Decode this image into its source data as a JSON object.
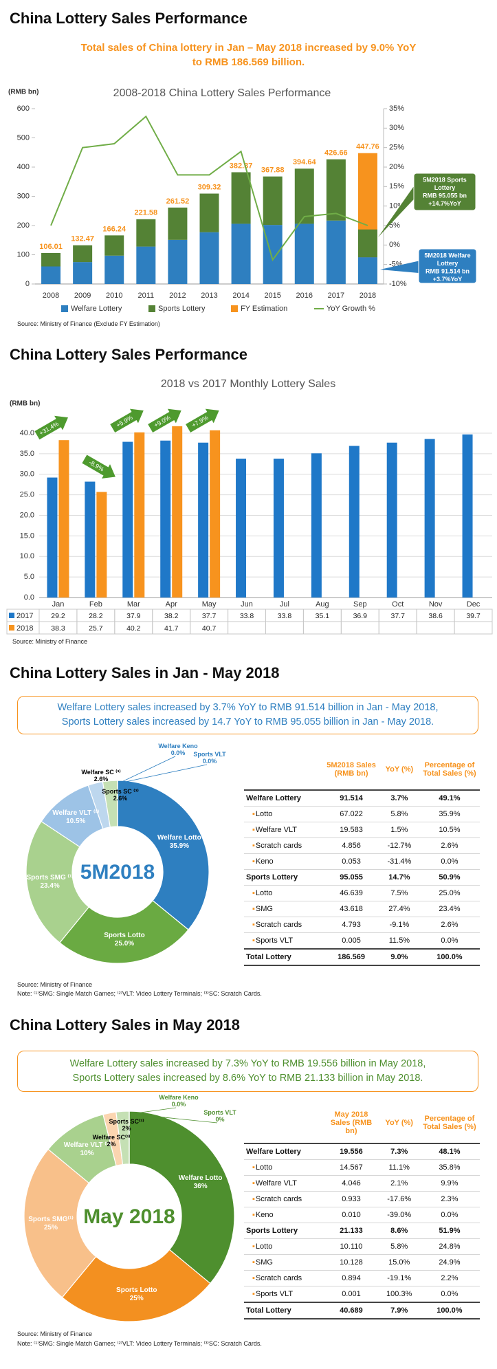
{
  "sections": [
    {
      "heading": "China Lottery Sales Performance",
      "subtitle": [
        "Total sales of China lottery in Jan – May 2018 increased by 9.0% YoY",
        "to RMB 186.569 billion."
      ],
      "source": "Source: Ministry of Finance (Exclude FY Estimation)"
    },
    {
      "heading": "China Lottery Sales Performance",
      "source": "Source: Ministry of Finance"
    },
    {
      "heading": "China Lottery Sales in Jan - May 2018",
      "summary": [
        "Welfare Lottery sales increased by 3.7% YoY to RMB 91.514 billion in Jan - May 2018,",
        "Sports Lottery sales increased by 14.7 YoY to RMB 95.055 billion in Jan - May 2018."
      ],
      "source": "Source: Ministry of Finance",
      "note": "Note: ⁽¹⁾SMG: Single Match Games; ⁽²⁾VLT: Video Lottery Terminals; ⁽³⁾SC: Scratch Cards."
    },
    {
      "heading": "China Lottery Sales in May 2018",
      "summary": [
        "Welfare Lottery sales increased by 7.3% YoY to RMB 19.556 billion in May 2018,",
        "Sports Lottery sales increased by 8.6% YoY to RMB 21.133 billion in May 2018."
      ],
      "source": "Source: Ministry of Finance",
      "note": "Note: ⁽¹⁾SMG: Single Match Games; ⁽²⁾VLT: Video Lottery Terminals; ⁽³⁾SC: Scratch Cards."
    }
  ],
  "chart_data": [
    {
      "type": "combo",
      "title": "2008-2018 China Lottery Sales Performance",
      "ylabel": "(RMB bn)",
      "categories": [
        "2008",
        "2009",
        "2010",
        "2011",
        "2012",
        "2013",
        "2014",
        "2015",
        "2016",
        "2017",
        "2018"
      ],
      "series": [
        {
          "name": "Welfare Lottery",
          "color": "#2e7fc0",
          "kind": "bar",
          "stack": "sales",
          "values": [
            60,
            75,
            97,
            128,
            151,
            177,
            206,
            202,
            206,
            217,
            91.514
          ]
        },
        {
          "name": "Sports Lottery",
          "color": "#548235",
          "kind": "bar",
          "stack": "sales",
          "values": [
            46.01,
            57.47,
            69.24,
            93.58,
            110.52,
            132.32,
            176.37,
            165.88,
            188.64,
            209.66,
            95.055
          ]
        },
        {
          "name": "FY Estimation",
          "color": "#f7931e",
          "kind": "bar",
          "values": [
            null,
            null,
            null,
            null,
            null,
            null,
            null,
            null,
            null,
            null,
            447.76
          ]
        },
        {
          "name": "YoY Growth %",
          "color": "#70ad47",
          "kind": "line",
          "axis": "y2",
          "values": [
            5,
            25,
            26,
            33,
            18,
            18,
            24,
            -3.8,
            7.3,
            8.1,
            5
          ]
        }
      ],
      "totals": [
        106.01,
        132.47,
        166.24,
        221.58,
        261.52,
        309.32,
        382.37,
        367.88,
        394.64,
        426.66,
        447.76
      ],
      "ylim": [
        0,
        600
      ],
      "yticks": [
        0,
        100,
        200,
        300,
        400,
        500,
        600
      ],
      "y2lim": [
        -10,
        35
      ],
      "y2ticks": [
        {
          "value": -10,
          "label": "-10%"
        },
        {
          "value": -5,
          "label": "-5%"
        },
        {
          "value": 0,
          "label": "0%"
        },
        {
          "value": 5,
          "label": "5%"
        },
        {
          "value": 10,
          "label": "10%"
        },
        {
          "value": 15,
          "label": "15%"
        },
        {
          "value": 20,
          "label": "20%"
        },
        {
          "value": 25,
          "label": "25%"
        },
        {
          "value": 30,
          "label": "30%"
        },
        {
          "value": 35,
          "label": "35%"
        }
      ],
      "grid": false,
      "annotations": [
        {
          "color": "#548235",
          "lines": [
            "5M2018  Sports",
            "Lottery",
            "RMB 95.055 bn",
            "+14.7%YoY"
          ]
        },
        {
          "color": "#2e7fc0",
          "lines": [
            "5M2018 Welfare",
            "Lottery",
            "RMB 91.514 bn",
            "+3.7%YoY"
          ]
        }
      ]
    },
    {
      "type": "grouped_bar",
      "title": "2018 vs 2017 Monthly Lottery Sales",
      "ylabel": "(RMB bn)",
      "categories": [
        "Jan",
        "Feb",
        "Mar",
        "Apr",
        "May",
        "Jun",
        "Jul",
        "Aug",
        "Sep",
        "Oct",
        "Nov",
        "Dec"
      ],
      "series": [
        {
          "name": "2017",
          "color": "#1f78c8",
          "values": [
            29.2,
            28.2,
            37.9,
            38.2,
            37.7,
            33.8,
            33.8,
            35.1,
            36.9,
            37.7,
            38.6,
            39.7
          ]
        },
        {
          "name": "2018",
          "color": "#f7931e",
          "values": [
            38.3,
            25.7,
            40.2,
            41.7,
            40.7,
            null,
            null,
            null,
            null,
            null,
            null,
            null
          ]
        }
      ],
      "ylim": [
        0,
        42
      ],
      "yticks": [
        {
          "value": 0,
          "label": "0.0"
        },
        {
          "value": 5,
          "label": "5.0"
        },
        {
          "value": 10,
          "label": "10.0"
        },
        {
          "value": 15,
          "label": "15.0"
        },
        {
          "value": 20,
          "label": "20.0"
        },
        {
          "value": 25,
          "label": "25.0"
        },
        {
          "value": 30,
          "label": "30.0"
        },
        {
          "value": 35,
          "label": "35.0"
        },
        {
          "value": 40,
          "label": "40.0"
        }
      ],
      "grid": true,
      "annotations": [
        "+31.4%",
        "-8.9%",
        "+5.9%",
        "+9.0%",
        "+7.9%"
      ],
      "annotation_color": "#4e9a2e"
    },
    {
      "type": "donut",
      "center_label": "5M2018",
      "center_color": "#2e7fc0",
      "label_color": "#2e7fc0",
      "labels": [
        "Welfare Lotto",
        "Sports Lotto",
        "Sports SMG ⁽¹⁾",
        "Welfare VLT ⁽²⁾",
        "Welfare SC ⁽³⁾",
        "Sports SC ⁽³⁾",
        "Welfare Keno",
        "Sports VLT"
      ],
      "values": [
        35.9,
        25.0,
        23.4,
        10.5,
        2.6,
        2.6,
        0.0,
        0.0
      ],
      "value_labels": [
        "35.9%",
        "25.0%",
        "23.4%",
        "10.5%",
        "2.6%",
        "2.6%",
        "0.0%",
        "0.0%"
      ],
      "colors": [
        "#2e7fc0",
        "#6aaa42",
        "#a9d18e",
        "#9dc3e6",
        "#bdd7ee",
        "#c5e0b4",
        "#2e7fc0",
        "#548235"
      ]
    },
    {
      "type": "donut",
      "center_label": "May 2018",
      "center_color": "#4e8f2e",
      "label_color": "#4e8f2e",
      "labels": [
        "Welfare Lotto",
        "Sports Lotto",
        "Sports SMG⁽¹⁾",
        "Welfare VLT ⁽²⁾",
        "Sports SC⁽³⁾",
        "Welfare SC⁽³⁾",
        "Welfare Keno",
        "Sports VLT"
      ],
      "values": [
        36,
        25,
        25,
        10,
        2,
        2,
        0.0,
        0
      ],
      "value_labels": [
        "36%",
        "25%",
        "25%",
        "10%",
        "2%",
        "2%",
        "0.0%",
        "0%"
      ],
      "colors": [
        "#4e8f2e",
        "#f39020",
        "#f8c08a",
        "#a9d18e",
        "#fbd5b0",
        "#c5e0b4",
        "#4e8f2e",
        "#f39020"
      ]
    }
  ],
  "tables": [
    {
      "headers": [
        "5M2018 Sales (RMB bn)",
        "YoY (%)",
        "Percentage of Total Sales (%)"
      ],
      "groups": [
        {
          "name": "Welfare Lottery",
          "cells": [
            "91.514",
            "3.7%",
            "49.1%"
          ],
          "items": [
            {
              "name": "Lotto",
              "cells": [
                "67.022",
                "5.8%",
                "35.9%"
              ]
            },
            {
              "name": "Welfare VLT",
              "cells": [
                "19.583",
                "1.5%",
                "10.5%"
              ]
            },
            {
              "name": "Scratch cards",
              "cells": [
                "4.856",
                "-12.7%",
                "2.6%"
              ]
            },
            {
              "name": "Keno",
              "cells": [
                "0.053",
                "-31.4%",
                "0.0%"
              ]
            }
          ]
        },
        {
          "name": "Sports Lottery",
          "cells": [
            "95.055",
            "14.7%",
            "50.9%"
          ],
          "items": [
            {
              "name": "Lotto",
              "cells": [
                "46.639",
                "7.5%",
                "25.0%"
              ]
            },
            {
              "name": "SMG",
              "cells": [
                "43.618",
                "27.4%",
                "23.4%"
              ]
            },
            {
              "name": "Scratch cards",
              "cells": [
                "4.793",
                "-9.1%",
                "2.6%"
              ]
            },
            {
              "name": "Sports VLT",
              "cells": [
                "0.005",
                "11.5%",
                "0.0%"
              ]
            }
          ]
        }
      ],
      "total": {
        "name": "Total Lottery",
        "cells": [
          "186.569",
          "9.0%",
          "100.0%"
        ]
      }
    },
    {
      "headers": [
        "May 2018 Sales (RMB bn)",
        "YoY (%)",
        "Percentage of Total Sales (%)"
      ],
      "groups": [
        {
          "name": "Welfare Lottery",
          "cells": [
            "19.556",
            "7.3%",
            "48.1%"
          ],
          "items": [
            {
              "name": "Lotto",
              "cells": [
                "14.567",
                "11.1%",
                "35.8%"
              ]
            },
            {
              "name": "Welfare VLT",
              "cells": [
                "4.046",
                "2.1%",
                "9.9%"
              ]
            },
            {
              "name": "Scratch cards",
              "cells": [
                "0.933",
                "-17.6%",
                "2.3%"
              ]
            },
            {
              "name": "Keno",
              "cells": [
                "0.010",
                "-39.0%",
                "0.0%"
              ]
            }
          ]
        },
        {
          "name": "Sports Lottery",
          "cells": [
            "21.133",
            "8.6%",
            "51.9%"
          ],
          "items": [
            {
              "name": "Lotto",
              "cells": [
                "10.110",
                "5.8%",
                "24.8%"
              ]
            },
            {
              "name": "SMG",
              "cells": [
                "10.128",
                "15.0%",
                "24.9%"
              ]
            },
            {
              "name": "Scratch cards",
              "cells": [
                "0.894",
                "-19.1%",
                "2.2%"
              ]
            },
            {
              "name": "Sports VLT",
              "cells": [
                "0.001",
                "100.3%",
                "0.0%"
              ]
            }
          ]
        }
      ],
      "total": {
        "name": "Total Lottery",
        "cells": [
          "40.689",
          "7.9%",
          "100.0%"
        ]
      }
    }
  ]
}
